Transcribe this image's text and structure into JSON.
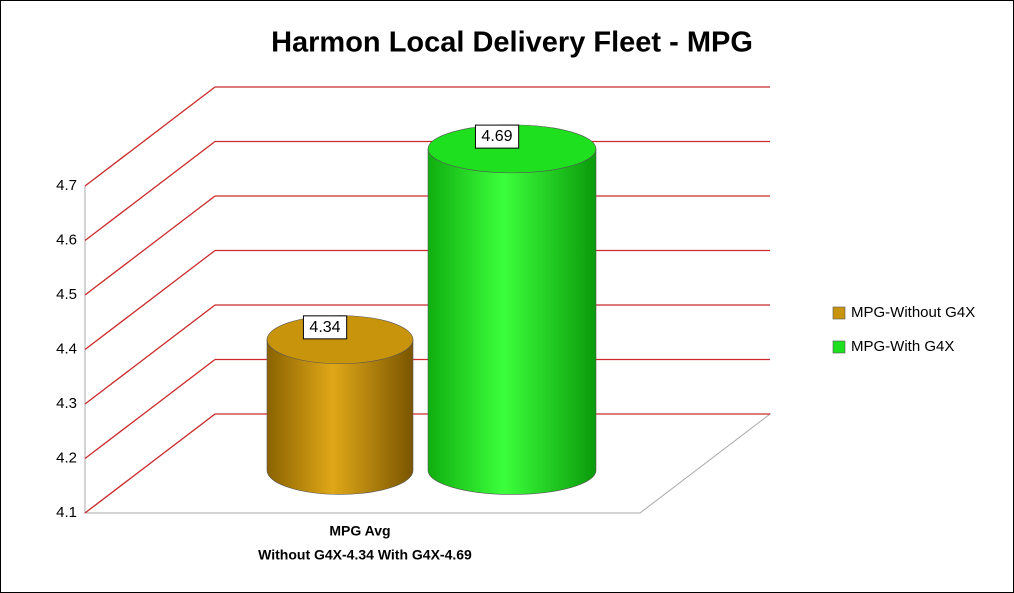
{
  "chart_data": {
    "type": "bar3d",
    "title": "Harmon Local Delivery Fleet - MPG",
    "categories": [
      "MPG Avg"
    ],
    "xlabel": "Without G4X-4.34   With G4X-4.69",
    "series": [
      {
        "name": "MPG-Without G4X",
        "color": "#c8940c",
        "values": [
          4.34
        ]
      },
      {
        "name": "MPG-With G4X",
        "color": "#1fe01f",
        "values": [
          4.69
        ]
      }
    ],
    "ylim": [
      4.1,
      4.7
    ],
    "yticks": [
      4.1,
      4.2,
      4.3,
      4.4,
      4.5,
      4.6,
      4.7
    ],
    "grid": true,
    "legend": "right"
  }
}
